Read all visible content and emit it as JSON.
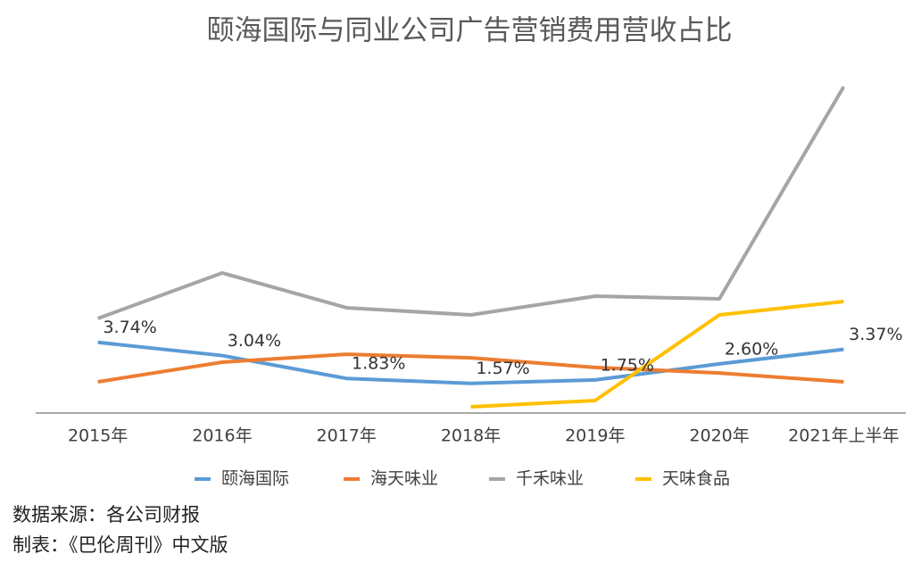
{
  "chart_data": {
    "type": "line",
    "title": "颐海国际与同业公司广告营销费用营收占比",
    "categories": [
      "2015年",
      "2016年",
      "2017年",
      "2018年",
      "2019年",
      "2020年",
      "2021年上半年"
    ],
    "series": [
      {
        "name": "颐海国际",
        "color": "#5b9bd5",
        "values": [
          3.74,
          3.04,
          1.83,
          1.57,
          1.75,
          2.6,
          3.37
        ],
        "value_labels": [
          "3.74%",
          "3.04%",
          "1.83%",
          "1.57%",
          "1.75%",
          "2.60%",
          "3.37%"
        ]
      },
      {
        "name": "海天味业",
        "color": "#ed7d31",
        "values": [
          1.65,
          2.69,
          3.11,
          2.92,
          2.41,
          2.12,
          1.65
        ]
      },
      {
        "name": "千禾味业",
        "color": "#a5a5a5",
        "values": [
          5.0,
          7.41,
          5.57,
          5.19,
          6.18,
          6.04,
          17.26
        ]
      },
      {
        "name": "天味食品",
        "color": "#ffc000",
        "values": [
          null,
          null,
          null,
          0.33,
          0.66,
          5.19,
          5.9
        ]
      }
    ],
    "ylim": [
      0,
      17.6
    ],
    "source": "数据来源：各公司财报",
    "credit": "制表：《巴伦周刊》中文版"
  }
}
